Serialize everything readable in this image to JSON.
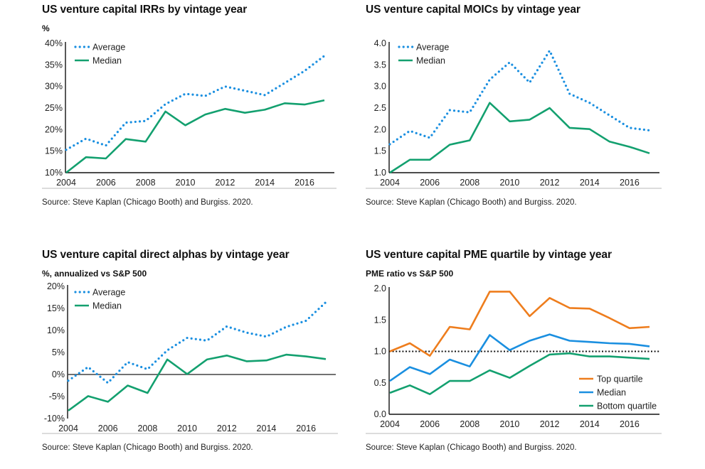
{
  "colors": {
    "average": "#1a8fe0",
    "median_green": "#13a06f",
    "top_quartile": "#ee7d1d",
    "median_blue": "#1a8fe0",
    "bottom_quartile": "#13a06f",
    "axis": "#111111",
    "separator": "#c8c8c8"
  },
  "panels": [
    {
      "title": "US venture capital IRRs by vintage year",
      "subtitle": "%",
      "source": "Source: Steve Kaplan (Chicago Booth) and Burgiss. 2020."
    },
    {
      "title": "US venture capital MOICs by vintage year",
      "subtitle": "",
      "source": "Source: Steve Kaplan (Chicago Booth) and Burgiss. 2020."
    },
    {
      "title": "US venture capital direct alphas by vintage year",
      "subtitle": "%, annualized vs S&P 500",
      "source": "Source: Steve Kaplan (Chicago Booth) and Burgiss. 2020."
    },
    {
      "title": "US venture capital PME quartile by vintage year",
      "subtitle": "PME ratio vs S&P 500",
      "source": "Source: Steve Kaplan (Chicago Booth) and Burgiss. 2020."
    }
  ],
  "chart_data": [
    {
      "type": "line",
      "title": "US venture capital IRRs by vintage year",
      "ylabel": "%",
      "xlabel": "",
      "x": [
        2004,
        2005,
        2006,
        2007,
        2008,
        2009,
        2010,
        2011,
        2012,
        2013,
        2014,
        2015,
        2016,
        2017
      ],
      "xticks": [
        "2004",
        "2006",
        "2008",
        "2010",
        "2012",
        "2014",
        "2016"
      ],
      "xtick_values": [
        2004,
        2006,
        2008,
        2010,
        2012,
        2014,
        2016
      ],
      "ylim": [
        10,
        40
      ],
      "yticks": [
        10,
        15,
        20,
        25,
        30,
        35,
        40
      ],
      "ytick_labels": [
        "10%",
        "15%",
        "20%",
        "25%",
        "30%",
        "35%",
        "40%"
      ],
      "legend": "top-left",
      "grid": false,
      "series": [
        {
          "name": "Average",
          "style": "dotted",
          "color_key": "average",
          "values": [
            15.3,
            17.9,
            16.3,
            21.6,
            22.0,
            25.9,
            28.3,
            27.8,
            30.0,
            29.0,
            28.0,
            30.8,
            33.6,
            37.1
          ]
        },
        {
          "name": "Median",
          "style": "solid",
          "color_key": "median_green",
          "values": [
            10.0,
            13.6,
            13.3,
            17.8,
            17.2,
            24.2,
            21.0,
            23.5,
            24.8,
            23.9,
            24.6,
            26.1,
            25.8,
            26.8
          ]
        }
      ]
    },
    {
      "type": "line",
      "title": "US venture capital MOICs by vintage year",
      "ylabel": "",
      "xlabel": "",
      "x": [
        2004,
        2005,
        2006,
        2007,
        2008,
        2009,
        2010,
        2011,
        2012,
        2013,
        2014,
        2015,
        2016,
        2017
      ],
      "xticks": [
        "2004",
        "2006",
        "2008",
        "2010",
        "2012",
        "2014",
        "2016"
      ],
      "xtick_values": [
        2004,
        2006,
        2008,
        2010,
        2012,
        2014,
        2016
      ],
      "ylim": [
        1.0,
        4.0
      ],
      "yticks": [
        1.0,
        1.5,
        2.0,
        2.5,
        3.0,
        3.5,
        4.0
      ],
      "ytick_labels": [
        "1.0",
        "1.5",
        "2.0",
        "2.5",
        "3.0",
        "3.5",
        "4.0"
      ],
      "legend": "top-left",
      "grid": false,
      "series": [
        {
          "name": "Average",
          "style": "dotted",
          "color_key": "average",
          "values": [
            1.66,
            1.97,
            1.81,
            2.45,
            2.4,
            3.16,
            3.56,
            3.09,
            3.83,
            2.83,
            2.62,
            2.33,
            2.04,
            1.98
          ]
        },
        {
          "name": "Median",
          "style": "solid",
          "color_key": "median_green",
          "values": [
            1.0,
            1.3,
            1.3,
            1.65,
            1.75,
            2.62,
            2.19,
            2.23,
            2.5,
            2.04,
            2.01,
            1.72,
            1.6,
            1.45
          ]
        }
      ]
    },
    {
      "type": "line",
      "title": "US venture capital direct alphas by vintage year",
      "ylabel": "%, annualized vs S&P 500",
      "xlabel": "",
      "x": [
        2004,
        2005,
        2006,
        2007,
        2008,
        2009,
        2010,
        2011,
        2012,
        2013,
        2014,
        2015,
        2016,
        2017
      ],
      "xticks": [
        "2004",
        "2006",
        "2008",
        "2010",
        "2012",
        "2014",
        "2016"
      ],
      "xtick_values": [
        2004,
        2006,
        2008,
        2010,
        2012,
        2014,
        2016
      ],
      "ylim": [
        -10,
        20
      ],
      "yticks": [
        -10,
        -5,
        0,
        5,
        10,
        15,
        20
      ],
      "ytick_labels": [
        "-10%",
        "-5%",
        "0%",
        "5%",
        "10%",
        "15%",
        "20%"
      ],
      "reference_line": 0,
      "legend": "top-left",
      "grid": false,
      "series": [
        {
          "name": "Average",
          "style": "dotted",
          "color_key": "average",
          "values": [
            -1.4,
            1.7,
            -1.9,
            2.8,
            1.2,
            5.5,
            8.3,
            7.7,
            10.9,
            9.5,
            8.6,
            10.8,
            12.2,
            16.4
          ]
        },
        {
          "name": "Median",
          "style": "solid",
          "color_key": "median_green",
          "values": [
            -8.2,
            -4.9,
            -6.2,
            -2.5,
            -4.2,
            3.4,
            0.1,
            3.4,
            4.3,
            3.0,
            3.2,
            4.5,
            4.1,
            3.5
          ]
        }
      ]
    },
    {
      "type": "line",
      "title": "US venture capital PME quartile by vintage year",
      "ylabel": "PME ratio vs S&P 500",
      "xlabel": "",
      "x": [
        2004,
        2005,
        2006,
        2007,
        2008,
        2009,
        2010,
        2011,
        2012,
        2013,
        2014,
        2015,
        2016,
        2017
      ],
      "xticks": [
        "2004",
        "2006",
        "2008",
        "2010",
        "2012",
        "2014",
        "2016"
      ],
      "xtick_values": [
        2004,
        2006,
        2008,
        2010,
        2012,
        2014,
        2016
      ],
      "ylim": [
        0.0,
        2.0
      ],
      "yticks": [
        0.0,
        0.5,
        1.0,
        1.5,
        2.0
      ],
      "ytick_labels": [
        "0.0",
        "0.5",
        "1.0",
        "1.5",
        "2.0"
      ],
      "reference_line": 1.0,
      "reference_style": "dotted",
      "legend": "bottom-right",
      "grid": false,
      "series": [
        {
          "name": "Top quartile",
          "style": "solid",
          "color_key": "top_quartile",
          "values": [
            1.0,
            1.13,
            0.93,
            1.39,
            1.35,
            1.95,
            1.95,
            1.56,
            1.85,
            1.69,
            1.68,
            1.53,
            1.37,
            1.39
          ]
        },
        {
          "name": "Median",
          "style": "solid",
          "color_key": "median_blue",
          "values": [
            0.53,
            0.75,
            0.64,
            0.87,
            0.76,
            1.26,
            1.02,
            1.17,
            1.27,
            1.17,
            1.15,
            1.13,
            1.12,
            1.08
          ]
        },
        {
          "name": "Bottom quartile",
          "style": "solid",
          "color_key": "bottom_quartile",
          "values": [
            0.34,
            0.46,
            0.32,
            0.53,
            0.53,
            0.7,
            0.58,
            0.77,
            0.95,
            0.97,
            0.92,
            0.92,
            0.9,
            0.88
          ]
        }
      ]
    }
  ]
}
